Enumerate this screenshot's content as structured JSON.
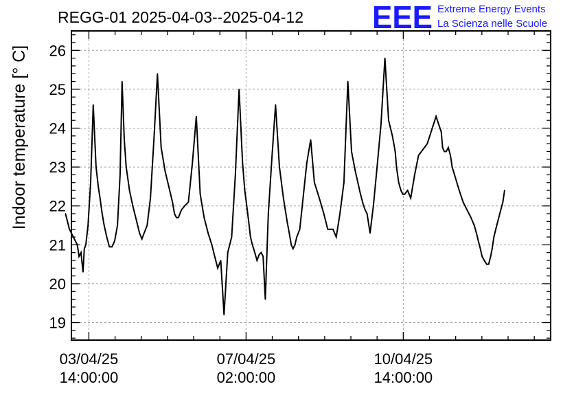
{
  "header": {
    "title": "REGG-01 2025-04-03--2025-04-12",
    "logo_text": "EEE",
    "logo_line1": "Extreme Energy Events",
    "logo_line2": "La Scienza nelle Scuole",
    "logo_color": "#1a1aff"
  },
  "chart_data": {
    "type": "line",
    "title": "REGG-01 2025-04-03--2025-04-12",
    "ylabel": "Indoor temperature [° C]",
    "xlabel": "",
    "x_unit": "hours since 2025-04-03 00:00",
    "xlim": [
      6.0,
      225.5
    ],
    "ylim": [
      18.55,
      26.5
    ],
    "grid": true,
    "y_ticks": [
      19,
      20,
      21,
      22,
      23,
      24,
      25,
      26
    ],
    "x_ticks": [
      {
        "x": 14,
        "line1": "03/04/25",
        "line2": "14:00:00"
      },
      {
        "x": 86,
        "line1": "07/04/25",
        "line2": "02:00:00"
      },
      {
        "x": 158,
        "line1": "10/04/25",
        "line2": "14:00:00"
      }
    ],
    "series": [
      {
        "name": "",
        "color": "#000000",
        "x": [
          3.3,
          5.1,
          6.9,
          8.7,
          9.5,
          10.4,
          11.3,
          11.9,
          12.6,
          13.6,
          14.8,
          16.0,
          17.3,
          18.3,
          19.1,
          20.1,
          21.0,
          22.2,
          23.4,
          24.6,
          25.8,
          27.1,
          28.3,
          29.2,
          30.2,
          31.1,
          32.6,
          34.1,
          35.9,
          37.2,
          38.3,
          39.3,
          40.7,
          42.2,
          43.9,
          45.4,
          47.1,
          48.9,
          50.6,
          52.3,
          53.2,
          54.1,
          55.0,
          56.4,
          57.9,
          59.6,
          61.4,
          63.2,
          65.0,
          66.8,
          68.6,
          70.3,
          71.2,
          72.1,
          73.0,
          74.4,
          75.9,
          77.6,
          79.4,
          81.1,
          82.8,
          84.4,
          85.4,
          86.3,
          87.2,
          88.0,
          88.9,
          90.0,
          91.0,
          92.0,
          92.9,
          93.8,
          94.8,
          96.2,
          97.8,
          99.5,
          101.3,
          103.1,
          104.8,
          106.1,
          106.7,
          107.5,
          108.4,
          109.2,
          110.6,
          112.1,
          113.8,
          115.6,
          117.3,
          119.0,
          120.6,
          121.6,
          122.5,
          123.4,
          124.4,
          125.8,
          127.3,
          129.0,
          130.8,
          132.6,
          134.3,
          136.0,
          137.6,
          138.2,
          138.9,
          139.6,
          140.5,
          141.4,
          142.8,
          144.3,
          146.0,
          147.8,
          149.6,
          151.3,
          153.0,
          154.3,
          154.9,
          155.9,
          156.9,
          157.8,
          158.6,
          160.0,
          161.4,
          163.2,
          165.0,
          169.0,
          173.0,
          175.4,
          176.0,
          176.8,
          177.7,
          178.6,
          179.6,
          180.4,
          182.0,
          183.6,
          185.4,
          187.2,
          189.0,
          190.5,
          191.5,
          192.4,
          193.3,
          194.1,
          195.1,
          196.2,
          197.1,
          198.0,
          198.7,
          199.5,
          200.8,
          202.2,
          203.6,
          204.4
        ],
        "values": [
          21.8,
          21.4,
          21.2,
          21.0,
          20.7,
          20.8,
          20.3,
          20.9,
          21.0,
          21.5,
          22.6,
          24.6,
          23.0,
          22.5,
          22.2,
          21.8,
          21.5,
          21.2,
          20.95,
          20.95,
          21.1,
          21.5,
          22.8,
          25.2,
          23.7,
          23.0,
          22.4,
          22.0,
          21.6,
          21.3,
          21.15,
          21.3,
          21.5,
          22.2,
          23.8,
          25.4,
          23.5,
          22.9,
          22.5,
          22.1,
          21.8,
          21.7,
          21.7,
          21.9,
          22.0,
          22.1,
          23.1,
          24.3,
          22.3,
          21.7,
          21.3,
          21.0,
          20.8,
          20.6,
          20.4,
          20.6,
          19.2,
          20.8,
          21.2,
          22.8,
          25.0,
          23.1,
          22.4,
          22.0,
          21.6,
          21.2,
          21.0,
          20.8,
          20.6,
          20.75,
          20.8,
          20.7,
          19.6,
          21.8,
          23.2,
          24.6,
          23.0,
          22.2,
          21.6,
          21.2,
          21.0,
          20.9,
          21.0,
          21.2,
          21.4,
          22.2,
          23.1,
          23.7,
          22.6,
          22.3,
          22.0,
          21.8,
          21.6,
          21.4,
          21.4,
          21.4,
          21.2,
          21.8,
          22.6,
          25.2,
          23.4,
          22.9,
          22.5,
          22.35,
          22.2,
          22.05,
          21.9,
          21.8,
          21.3,
          22.0,
          23.0,
          24.1,
          25.8,
          24.2,
          23.8,
          23.4,
          23.0,
          22.6,
          22.4,
          22.3,
          22.3,
          22.4,
          22.2,
          22.8,
          23.3,
          23.6,
          24.3,
          23.9,
          23.5,
          23.4,
          23.4,
          23.5,
          23.3,
          23.0,
          22.7,
          22.4,
          22.1,
          21.9,
          21.7,
          21.5,
          21.3,
          21.1,
          20.9,
          20.7,
          20.6,
          20.5,
          20.5,
          20.7,
          20.9,
          21.2,
          21.5,
          21.8,
          22.1,
          22.4
        ],
        "note_ignore": ""
      }
    ]
  }
}
